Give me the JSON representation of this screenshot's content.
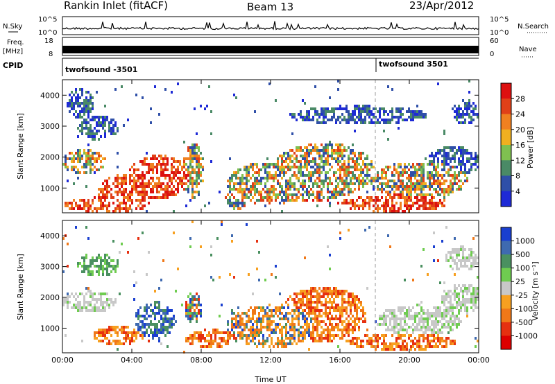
{
  "header": {
    "station": "Rankin Inlet (fitACF)",
    "beam": "Beam 13",
    "date": "23/Apr/2012"
  },
  "top_panels": {
    "nsky_label": "N.Sky",
    "nsky_ticks": [
      "10^5",
      "10^0"
    ],
    "nsearch_label": "N.Search",
    "nsearch_ticks": [
      "10^5",
      "10^0"
    ],
    "freq_label": "Freq.",
    "freq_unit": "[MHz]",
    "freq_ticks": [
      "18",
      "8"
    ],
    "nave_label": "Nave",
    "nave_ticks": [
      "60",
      "0"
    ],
    "cpid_label": "CPID",
    "cpid_entries": [
      "twofsound -3501",
      "twofsound 3501"
    ]
  },
  "colors": {
    "power_scale": [
      "#1e2ad6",
      "#2f4fa8",
      "#4a8a66",
      "#7fc050",
      "#f0b020",
      "#f08020",
      "#e04018",
      "#dd1010"
    ],
    "velocity_scale": [
      "#1a3fd0",
      "#3f6ab0",
      "#4a9060",
      "#6fcc50",
      "#c8c8c8",
      "#f7a020",
      "#f07818",
      "#e63010",
      "#dd0000"
    ]
  },
  "chart_data": [
    {
      "type": "heatmap",
      "title": "",
      "xlabel": "",
      "ylabel": "Slant Range [km]",
      "x_ticks": [
        "00:00",
        "04:00",
        "08:00",
        "12:00",
        "16:00",
        "20:00",
        "00:00"
      ],
      "y_ticks": [
        "1000",
        "2000",
        "3000",
        "4000"
      ],
      "ylim": [
        200,
        4500
      ],
      "colorbar_label": "Power [dB]",
      "colorbar_ticks": [
        "4",
        "8",
        "12",
        "16",
        "20",
        "24",
        "28"
      ]
    },
    {
      "type": "heatmap",
      "title": "",
      "xlabel": "Time UT",
      "ylabel": "Slant Range [km]",
      "x_ticks": [
        "00:00",
        "04:00",
        "08:00",
        "12:00",
        "16:00",
        "20:00",
        "00:00"
      ],
      "y_ticks": [
        "1000",
        "2000",
        "3000",
        "4000"
      ],
      "ylim": [
        200,
        4500
      ],
      "colorbar_label": "Velocity [m s⁻¹]",
      "colorbar_ticks": [
        "1000",
        "500",
        "100",
        "25",
        "-25",
        "-100",
        "-500",
        "-1000"
      ]
    }
  ]
}
